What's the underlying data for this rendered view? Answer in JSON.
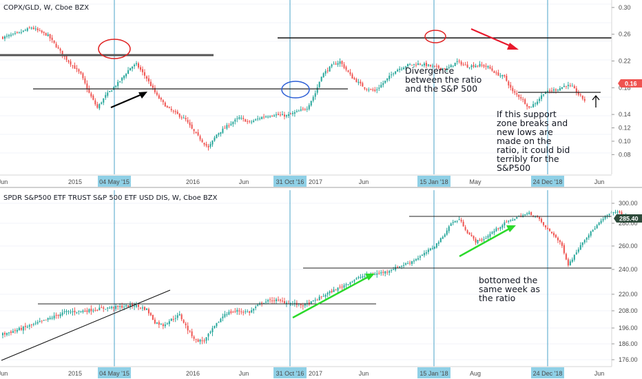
{
  "colors": {
    "up": "#26a69a",
    "down": "#ef5350",
    "cursor": "#4aa3c8",
    "cursor_tag": "#8fd0e6",
    "price_tag": "#ef5350",
    "price_tag2": "#2e4b3b",
    "green_arrow": "#2bd92b",
    "red_arrow": "#e8192c",
    "circle_red": "#e02020",
    "circle_blue": "#2d5fd6"
  },
  "chart_data": [
    {
      "type": "candlestick",
      "title": "COPX/GLD, W, Cboe BZX",
      "yticks": [
        "0.30",
        "0.26",
        "0.22",
        "0.18",
        "0.14",
        "0.12",
        "0.10",
        "0.08"
      ],
      "ytick_values": [
        0.3,
        0.26,
        0.22,
        0.18,
        0.14,
        0.12,
        0.1,
        0.08
      ],
      "ylim": [
        0.068,
        0.305
      ],
      "last_price": "0.16",
      "xticks": [
        "Jun",
        "2015",
        "2016",
        "Jun",
        "2017",
        "Jun",
        "May",
        "Jun"
      ],
      "cursor_dates": [
        "04 May '15",
        "31 Oct '16",
        "15 Jan '18",
        "24 Dec '18"
      ],
      "path": [
        [
          0,
          0.255
        ],
        [
          8,
          0.262
        ],
        [
          14,
          0.27
        ],
        [
          22,
          0.258
        ],
        [
          30,
          0.226
        ],
        [
          38,
          0.2
        ],
        [
          42,
          0.172
        ],
        [
          46,
          0.15
        ],
        [
          50,
          0.168
        ],
        [
          57,
          0.19
        ],
        [
          62,
          0.21
        ],
        [
          65,
          0.215
        ],
        [
          70,
          0.194
        ],
        [
          75,
          0.168
        ],
        [
          80,
          0.15
        ],
        [
          85,
          0.14
        ],
        [
          89,
          0.132
        ],
        [
          92,
          0.118
        ],
        [
          97,
          0.1
        ],
        [
          100,
          0.09
        ],
        [
          104,
          0.11
        ],
        [
          110,
          0.125
        ],
        [
          115,
          0.135
        ],
        [
          120,
          0.128
        ],
        [
          126,
          0.136
        ],
        [
          132,
          0.14
        ],
        [
          138,
          0.138
        ],
        [
          144,
          0.145
        ],
        [
          148,
          0.15
        ],
        [
          152,
          0.172
        ],
        [
          155,
          0.198
        ],
        [
          160,
          0.213
        ],
        [
          164,
          0.219
        ],
        [
          170,
          0.195
        ],
        [
          176,
          0.18
        ],
        [
          181,
          0.175
        ],
        [
          186,
          0.19
        ],
        [
          191,
          0.206
        ],
        [
          197,
          0.214
        ],
        [
          203,
          0.216
        ],
        [
          210,
          0.211
        ],
        [
          216,
          0.208
        ],
        [
          221,
          0.219
        ],
        [
          226,
          0.212
        ],
        [
          232,
          0.214
        ],
        [
          236,
          0.211
        ],
        [
          240,
          0.201
        ],
        [
          244,
          0.196
        ],
        [
          248,
          0.174
        ],
        [
          252,
          0.165
        ],
        [
          256,
          0.15
        ],
        [
          260,
          0.16
        ],
        [
          263,
          0.172
        ],
        [
          266,
          0.175
        ],
        [
          270,
          0.178
        ],
        [
          274,
          0.184
        ],
        [
          277,
          0.181
        ],
        [
          280,
          0.17
        ],
        [
          283,
          0.161
        ]
      ],
      "annotations": [
        "Divergence between the ratio and the S&P 500",
        "If this support zone breaks and new lows are made on the ratio, it could bid terribly for the S&P500"
      ],
      "ann_lines": [
        [
          "Divergence",
          "between the ratio",
          "and the S&P 500"
        ],
        [
          "If this support",
          "zone breaks and",
          "new lows are",
          "made on the",
          "ratio, it could bid",
          "terribly for the",
          "S&P500"
        ]
      ]
    },
    {
      "type": "candlestick",
      "title": "SPDR S&P500 ETF TRUST S&P 500 ETF USD DIS, W, Cboe BZX",
      "yticks": [
        "300.00",
        "280.00",
        "260.00",
        "240.00",
        "220.00",
        "208.00",
        "196.00",
        "186.00",
        "176.00"
      ],
      "ytick_values": [
        300,
        280,
        260,
        240,
        220,
        208,
        196,
        186,
        176
      ],
      "last_price": "285.40",
      "xticks": [
        "Jun",
        "2015",
        "2016",
        "Jun",
        "2017",
        "Jun",
        "Aug",
        "Jun"
      ],
      "cursor_dates": [
        "04 May '15",
        "31 Oct '16",
        "15 Jan '18",
        "24 Dec '18"
      ],
      "path": [
        [
          0,
          192
        ],
        [
          10,
          196
        ],
        [
          20,
          201
        ],
        [
          30,
          207
        ],
        [
          40,
          208
        ],
        [
          50,
          210
        ],
        [
          58,
          211
        ],
        [
          64,
          212
        ],
        [
          70,
          209
        ],
        [
          74,
          200
        ],
        [
          78,
          198
        ],
        [
          82,
          202
        ],
        [
          86,
          205
        ],
        [
          90,
          195
        ],
        [
          94,
          188
        ],
        [
          98,
          188
        ],
        [
          102,
          195
        ],
        [
          108,
          206
        ],
        [
          114,
          208
        ],
        [
          120,
          207
        ],
        [
          126,
          214
        ],
        [
          132,
          216
        ],
        [
          138,
          214
        ],
        [
          146,
          212
        ],
        [
          150,
          214
        ],
        [
          156,
          219
        ],
        [
          162,
          224
        ],
        [
          168,
          229
        ],
        [
          174,
          234
        ],
        [
          180,
          236
        ],
        [
          186,
          238
        ],
        [
          192,
          242
        ],
        [
          198,
          246
        ],
        [
          204,
          252
        ],
        [
          210,
          260
        ],
        [
          214,
          268
        ],
        [
          218,
          280
        ],
        [
          222,
          284
        ],
        [
          226,
          272
        ],
        [
          230,
          264
        ],
        [
          234,
          266
        ],
        [
          238,
          272
        ],
        [
          244,
          280
        ],
        [
          250,
          286
        ],
        [
          256,
          290
        ],
        [
          260,
          286
        ],
        [
          264,
          276
        ],
        [
          268,
          270
        ],
        [
          272,
          260
        ],
        [
          275,
          244
        ],
        [
          278,
          252
        ],
        [
          282,
          264
        ],
        [
          286,
          272
        ],
        [
          290,
          280
        ],
        [
          294,
          288
        ],
        [
          298,
          292
        ],
        [
          302,
          288
        ],
        [
          306,
          285
        ]
      ],
      "annotations": [
        "bottomed the same week as the ratio"
      ],
      "ann_lines": [
        [
          "bottomed the",
          "same week as",
          "the ratio"
        ]
      ]
    }
  ]
}
